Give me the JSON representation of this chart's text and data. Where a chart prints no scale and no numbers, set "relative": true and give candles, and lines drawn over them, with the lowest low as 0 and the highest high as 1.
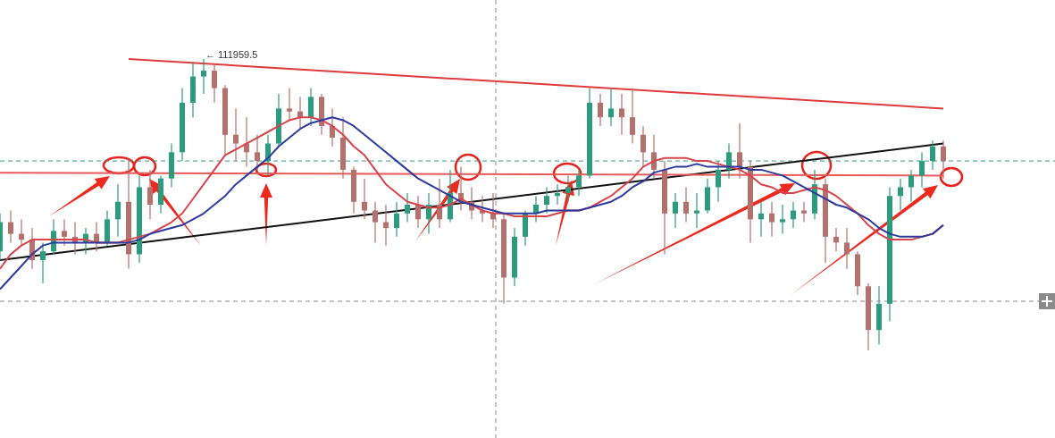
{
  "chart_data": {
    "type": "candlestick",
    "relative": true,
    "categories": [
      null,
      null,
      null,
      null,
      null,
      null,
      null,
      null,
      null,
      null,
      null,
      null,
      null,
      null,
      null,
      null,
      null,
      null,
      null,
      null,
      null,
      null,
      null,
      null,
      null,
      null,
      null,
      null,
      null,
      null,
      null,
      null,
      null,
      null,
      null,
      null,
      null,
      null,
      null,
      null,
      null,
      null,
      null,
      null,
      null,
      null,
      null,
      null,
      null,
      null,
      null,
      null,
      null,
      null,
      null,
      null,
      null,
      null,
      null,
      null,
      null,
      null,
      null,
      null,
      null,
      null,
      null,
      null,
      null,
      null,
      null,
      null,
      null,
      null,
      null,
      null,
      null,
      null,
      null,
      null,
      null,
      null,
      null,
      null,
      null,
      null,
      null,
      null,
      null
    ],
    "colors": [
      "#2a9d7c",
      "#b5706c",
      "#b5706c",
      "#b5706c",
      "#2a9d7c",
      "#2a9d7c",
      "#b5706c",
      "#b5706c",
      "#2a9d7c",
      "#b5706c",
      "#2a9d7c",
      "#2a9d7c",
      "#b5706c",
      "#2a9d7c",
      "#b5706c",
      "#2a9d7c",
      "#2a9d7c",
      "#2a9d7c",
      "#2a9d7c",
      "#2a9d7c",
      "#b5706c",
      "#b5706c",
      "#b5706c",
      "#b5706c",
      "#b5706c",
      "#2a9d7c",
      "#2a9d7c",
      "#b5706c",
      "#b5706c",
      "#2a9d7c",
      "#b5706c",
      "#b5706c",
      "#b5706c",
      "#b5706c",
      "#b5706c",
      "#b5706c",
      "#b5706c",
      "#2a9d7c",
      "#2a9d7c",
      "#b5706c",
      "#2a9d7c",
      "#b5706c",
      "#2a9d7c",
      "#b5706c",
      "#b5706c",
      "#b5706c",
      "#b5706c",
      "#b5706c",
      "#2a9d7c",
      "#2a9d7c",
      "#2a9d7c",
      "#2a9d7c",
      "#2a9d7c",
      "#2a9d7c",
      "#2a9d7c",
      "#2a9d7c",
      "#b5706c",
      "#2a9d7c",
      "#b5706c",
      "#b5706c",
      "#b5706c",
      "#b5706c",
      "#b5706c",
      "#2a9d7c",
      "#b5706c",
      "#2a9d7c",
      "#2a9d7c",
      "#2a9d7c",
      "#2a9d7c",
      "#b5706c",
      "#b5706c",
      "#2a9d7c",
      "#b5706c",
      "#2a9d7c",
      "#2a9d7c",
      "#b5706c",
      "#2a9d7c",
      "#b5706c",
      "#b5706c",
      "#b5706c",
      "#b5706c",
      "#b5706c",
      "#2a9d7c",
      "#2a9d7c",
      "#2a9d7c",
      "#2a9d7c",
      "#2a9d7c",
      "#2a9d7c",
      "#b5706c"
    ],
    "ohlc": [
      [
        0.34,
        0.47,
        0.31,
        0.44
      ],
      [
        0.44,
        0.48,
        0.37,
        0.4
      ],
      [
        0.4,
        0.45,
        0.36,
        0.38
      ],
      [
        0.38,
        0.42,
        0.28,
        0.31
      ],
      [
        0.31,
        0.37,
        0.23,
        0.34
      ],
      [
        0.34,
        0.45,
        0.33,
        0.41
      ],
      [
        0.41,
        0.45,
        0.36,
        0.39
      ],
      [
        0.39,
        0.44,
        0.33,
        0.37
      ],
      [
        0.37,
        0.42,
        0.33,
        0.4
      ],
      [
        0.4,
        0.44,
        0.34,
        0.37
      ],
      [
        0.37,
        0.48,
        0.36,
        0.45
      ],
      [
        0.45,
        0.57,
        0.39,
        0.51
      ],
      [
        0.51,
        0.66,
        0.28,
        0.33
      ],
      [
        0.33,
        0.6,
        0.3,
        0.56
      ],
      [
        0.56,
        0.62,
        0.45,
        0.5
      ],
      [
        0.5,
        0.6,
        0.47,
        0.59
      ],
      [
        0.59,
        0.71,
        0.56,
        0.68
      ],
      [
        0.68,
        0.9,
        0.65,
        0.85
      ],
      [
        0.85,
        0.99,
        0.8,
        0.94
      ],
      [
        0.94,
        1.0,
        0.88,
        0.96
      ],
      [
        0.96,
        0.98,
        0.85,
        0.9
      ],
      [
        0.9,
        0.91,
        0.67,
        0.74
      ],
      [
        0.74,
        0.83,
        0.65,
        0.71
      ],
      [
        0.71,
        0.8,
        0.63,
        0.68
      ],
      [
        0.68,
        0.74,
        0.62,
        0.65
      ],
      [
        0.65,
        0.74,
        0.6,
        0.71
      ],
      [
        0.71,
        0.88,
        0.7,
        0.83
      ],
      [
        0.83,
        0.9,
        0.79,
        0.82
      ],
      [
        0.82,
        0.87,
        0.76,
        0.8
      ],
      [
        0.8,
        0.9,
        0.77,
        0.87
      ],
      [
        0.87,
        0.88,
        0.74,
        0.77
      ],
      [
        0.77,
        0.83,
        0.7,
        0.73
      ],
      [
        0.73,
        0.8,
        0.59,
        0.62
      ],
      [
        0.62,
        0.63,
        0.47,
        0.51
      ],
      [
        0.51,
        0.59,
        0.45,
        0.48
      ],
      [
        0.48,
        0.51,
        0.37,
        0.44
      ],
      [
        0.44,
        0.5,
        0.36,
        0.42
      ],
      [
        0.42,
        0.51,
        0.39,
        0.47
      ],
      [
        0.47,
        0.54,
        0.44,
        0.5
      ],
      [
        0.5,
        0.53,
        0.42,
        0.45
      ],
      [
        0.45,
        0.54,
        0.4,
        0.5
      ],
      [
        0.5,
        0.59,
        0.42,
        0.45
      ],
      [
        0.45,
        0.62,
        0.44,
        0.54
      ],
      [
        0.54,
        0.63,
        0.48,
        0.51
      ],
      [
        0.51,
        0.56,
        0.45,
        0.48
      ],
      [
        0.48,
        0.53,
        0.44,
        0.47
      ],
      [
        0.47,
        0.54,
        0.42,
        0.45
      ],
      [
        0.45,
        0.47,
        0.16,
        0.25
      ],
      [
        0.25,
        0.42,
        0.22,
        0.39
      ],
      [
        0.39,
        0.48,
        0.36,
        0.47
      ],
      [
        0.47,
        0.53,
        0.44,
        0.5
      ],
      [
        0.5,
        0.56,
        0.47,
        0.53
      ],
      [
        0.53,
        0.57,
        0.5,
        0.54
      ],
      [
        0.54,
        0.6,
        0.51,
        0.56
      ],
      [
        0.56,
        0.62,
        0.53,
        0.6
      ],
      [
        0.6,
        0.9,
        0.59,
        0.85
      ],
      [
        0.85,
        0.88,
        0.77,
        0.8
      ],
      [
        0.8,
        0.9,
        0.77,
        0.83
      ],
      [
        0.83,
        0.88,
        0.74,
        0.8
      ],
      [
        0.8,
        0.9,
        0.71,
        0.74
      ],
      [
        0.74,
        0.77,
        0.63,
        0.68
      ],
      [
        0.68,
        0.74,
        0.59,
        0.62
      ],
      [
        0.62,
        0.65,
        0.33,
        0.47
      ],
      [
        0.47,
        0.54,
        0.42,
        0.51
      ],
      [
        0.51,
        0.56,
        0.44,
        0.47
      ],
      [
        0.47,
        0.54,
        0.42,
        0.48
      ],
      [
        0.48,
        0.59,
        0.47,
        0.56
      ],
      [
        0.56,
        0.65,
        0.51,
        0.62
      ],
      [
        0.62,
        0.71,
        0.59,
        0.68
      ],
      [
        0.68,
        0.78,
        0.59,
        0.63
      ],
      [
        0.63,
        0.65,
        0.37,
        0.45
      ],
      [
        0.45,
        0.51,
        0.39,
        0.47
      ],
      [
        0.47,
        0.51,
        0.39,
        0.44
      ],
      [
        0.44,
        0.5,
        0.4,
        0.45
      ],
      [
        0.45,
        0.51,
        0.42,
        0.48
      ],
      [
        0.48,
        0.51,
        0.44,
        0.47
      ],
      [
        0.47,
        0.62,
        0.45,
        0.57
      ],
      [
        0.57,
        0.59,
        0.3,
        0.39
      ],
      [
        0.39,
        0.42,
        0.34,
        0.37
      ],
      [
        0.37,
        0.42,
        0.28,
        0.33
      ],
      [
        0.33,
        0.34,
        0.19,
        0.22
      ],
      [
        0.22,
        0.23,
        0,
        0.07
      ],
      [
        0.07,
        0.22,
        0.02,
        0.16
      ],
      [
        0.16,
        0.56,
        0.1,
        0.53
      ],
      [
        0.53,
        0.59,
        0.48,
        0.56
      ],
      [
        0.56,
        0.62,
        0.51,
        0.6
      ],
      [
        0.6,
        0.68,
        0.56,
        0.65
      ],
      [
        0.65,
        0.72,
        0.62,
        0.7
      ],
      [
        0.7,
        0.72,
        0.59,
        0.65
      ]
    ],
    "series": [
      {
        "type": "line",
        "color": "#d9434a",
        "values": [
          0.28,
          0.33,
          0.36,
          0.38,
          0.38,
          0.38,
          0.38,
          0.38,
          0.38,
          0.37,
          0.37,
          0.37,
          0.38,
          0.39,
          0.4,
          0.42,
          0.44,
          0.47,
          0.52,
          0.57,
          0.62,
          0.67,
          0.69,
          0.71,
          0.73,
          0.75,
          0.77,
          0.79,
          0.8,
          0.8,
          0.79,
          0.77,
          0.74,
          0.7,
          0.67,
          0.62,
          0.57,
          0.54,
          0.51,
          0.5,
          0.49,
          0.49,
          0.5,
          0.52,
          0.5,
          0.48,
          0.47,
          0.47,
          0.46,
          0.46,
          0.46,
          0.46,
          0.47,
          0.48,
          0.48,
          0.49,
          0.51,
          0.53,
          0.56,
          0.59,
          0.63,
          0.65,
          0.66,
          0.66,
          0.66,
          0.65,
          0.65,
          0.64,
          0.63,
          0.62,
          0.6,
          0.57,
          0.56,
          0.54,
          0.54,
          0.55,
          0.56,
          0.55,
          0.53,
          0.5,
          0.47,
          0.43,
          0.4,
          0.38,
          0.38,
          0.38,
          0.39,
          0.4,
          0.43
        ]
      },
      {
        "type": "line",
        "color": "#2b3a9e",
        "values": [
          0.21,
          0.25,
          0.29,
          0.33,
          0.36,
          0.37,
          0.37,
          0.37,
          0.37,
          0.37,
          0.37,
          0.37,
          0.37,
          0.38,
          0.4,
          0.41,
          0.42,
          0.43,
          0.45,
          0.47,
          0.5,
          0.53,
          0.57,
          0.6,
          0.63,
          0.66,
          0.7,
          0.73,
          0.76,
          0.78,
          0.79,
          0.8,
          0.79,
          0.77,
          0.74,
          0.71,
          0.68,
          0.65,
          0.62,
          0.59,
          0.57,
          0.55,
          0.53,
          0.51,
          0.5,
          0.49,
          0.48,
          0.47,
          0.47,
          0.47,
          0.47,
          0.48,
          0.48,
          0.48,
          0.48,
          0.49,
          0.5,
          0.51,
          0.53,
          0.56,
          0.58,
          0.61,
          0.62,
          0.63,
          0.63,
          0.64,
          0.63,
          0.63,
          0.63,
          0.63,
          0.62,
          0.62,
          0.61,
          0.6,
          0.58,
          0.56,
          0.54,
          0.52,
          0.5,
          0.49,
          0.47,
          0.45,
          0.42,
          0.4,
          0.39,
          0.39,
          0.39,
          0.4,
          0.43
        ]
      },
      {
        "type": "line",
        "color": "#e03a3a",
        "values": [
          null,
          null,
          null,
          null,
          null,
          null,
          null,
          null,
          null,
          null,
          null,
          null,
          1.0,
          null,
          null,
          null,
          null,
          null,
          null,
          null,
          null,
          null,
          null,
          null,
          null,
          null,
          null,
          null,
          null,
          null,
          null,
          null,
          null,
          null,
          null,
          null,
          null,
          null,
          null,
          null,
          null,
          null,
          null,
          null,
          null,
          null,
          null,
          null,
          null,
          null,
          null,
          null,
          null,
          null,
          null,
          null,
          null,
          null,
          null,
          null,
          null,
          null,
          null,
          null,
          null,
          null,
          null,
          null,
          null,
          null,
          null,
          null,
          null,
          null,
          null,
          null,
          null,
          null,
          null,
          null,
          null,
          null,
          null,
          null,
          null,
          null,
          null,
          null,
          0.83
        ]
      },
      {
        "type": "line",
        "color": "#111111",
        "values": [
          0.31,
          null,
          null,
          null,
          null,
          null,
          null,
          null,
          null,
          null,
          null,
          null,
          null,
          null,
          null,
          null,
          null,
          null,
          null,
          null,
          null,
          null,
          null,
          null,
          null,
          null,
          null,
          null,
          null,
          null,
          null,
          null,
          null,
          null,
          null,
          null,
          null,
          null,
          null,
          null,
          null,
          null,
          null,
          null,
          null,
          null,
          null,
          null,
          null,
          null,
          null,
          null,
          null,
          null,
          null,
          null,
          null,
          null,
          null,
          null,
          null,
          null,
          null,
          null,
          null,
          null,
          null,
          null,
          null,
          null,
          null,
          null,
          null,
          null,
          null,
          null,
          null,
          null,
          null,
          null,
          null,
          null,
          null,
          null,
          null,
          null,
          null,
          null,
          0.71
        ]
      },
      {
        "type": "line",
        "color": "#e85a5a",
        "values": [
          0.61,
          null,
          null,
          null,
          null,
          null,
          null,
          null,
          null,
          null,
          null,
          null,
          null,
          null,
          null,
          null,
          null,
          null,
          null,
          null,
          null,
          null,
          null,
          null,
          null,
          null,
          null,
          null,
          null,
          null,
          null,
          null,
          null,
          null,
          null,
          null,
          null,
          null,
          null,
          null,
          null,
          null,
          null,
          null,
          null,
          null,
          null,
          null,
          null,
          null,
          null,
          null,
          null,
          null,
          null,
          null,
          null,
          null,
          null,
          null,
          null,
          null,
          null,
          null,
          null,
          null,
          null,
          null,
          null,
          null,
          null,
          null,
          null,
          null,
          null,
          null,
          null,
          null,
          null,
          null,
          null,
          null,
          null,
          null,
          null,
          null,
          null,
          null,
          0.6
        ]
      }
    ],
    "ref_lines": [
      {
        "axis": "y",
        "value": 0.65,
        "color": "#3a9a80",
        "line_style": "dashed"
      }
    ],
    "annotations": [
      "← 111959.5"
    ]
  }
}
